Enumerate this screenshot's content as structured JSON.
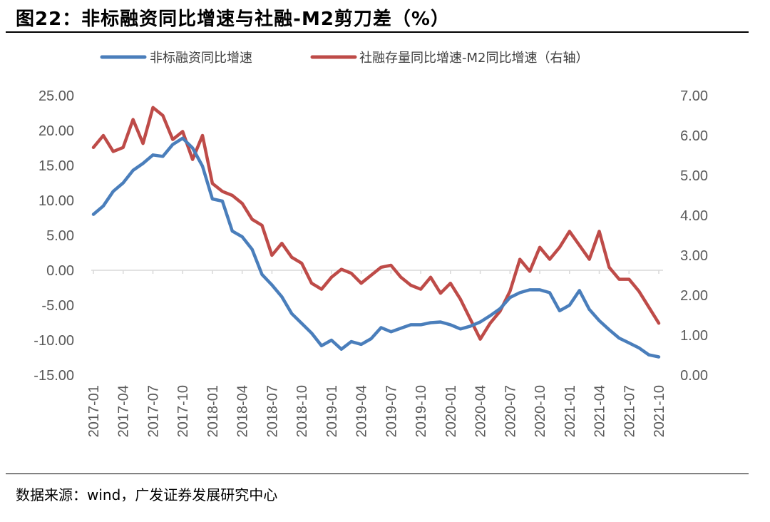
{
  "figure": {
    "title": "图22：非标融资同比增速与社融-M2剪刀差（%）",
    "source": "数据来源：wind，广发证券发展研究中心"
  },
  "colors": {
    "series1": "#4a7ebb",
    "series2": "#be4b48",
    "axis": "#d9d9d9",
    "tick": "#595959"
  },
  "chart_data": {
    "type": "line",
    "title": "非标融资同比增速与社融-M2剪刀差（%）",
    "legend_position": "top",
    "grid": false,
    "x": [
      "2017-01",
      "2017-02",
      "2017-03",
      "2017-04",
      "2017-05",
      "2017-06",
      "2017-07",
      "2017-08",
      "2017-09",
      "2017-10",
      "2017-11",
      "2017-12",
      "2018-01",
      "2018-02",
      "2018-03",
      "2018-04",
      "2018-05",
      "2018-06",
      "2018-07",
      "2018-08",
      "2018-09",
      "2018-10",
      "2018-11",
      "2018-12",
      "2019-01",
      "2019-02",
      "2019-03",
      "2019-04",
      "2019-05",
      "2019-06",
      "2019-07",
      "2019-08",
      "2019-09",
      "2019-10",
      "2019-11",
      "2019-12",
      "2020-01",
      "2020-02",
      "2020-03",
      "2020-04",
      "2020-05",
      "2020-06",
      "2020-07",
      "2020-08",
      "2020-09",
      "2020-10",
      "2020-11",
      "2020-12",
      "2021-01",
      "2021-02",
      "2021-03",
      "2021-04",
      "2021-05",
      "2021-06",
      "2021-07",
      "2021-08",
      "2021-09",
      "2021-10"
    ],
    "x_tick_labels": [
      "2017-01",
      "2017-04",
      "2017-07",
      "2017-10",
      "2018-01",
      "2018-04",
      "2018-07",
      "2018-10",
      "2019-01",
      "2019-04",
      "2019-07",
      "2019-10",
      "2020-01",
      "2020-04",
      "2020-07",
      "2020-10",
      "2021-01",
      "2021-04",
      "2021-07",
      "2021-10"
    ],
    "y_left": {
      "ylim": [
        -15,
        25
      ],
      "ticks": [
        "25.00",
        "20.00",
        "15.00",
        "10.00",
        "5.00",
        "0.00",
        "-5.00",
        "-10.00",
        "-15.00"
      ]
    },
    "y_right": {
      "ylim": [
        0,
        7
      ],
      "ticks": [
        "7.00",
        "6.00",
        "5.00",
        "4.00",
        "3.00",
        "2.00",
        "1.00",
        "0.00"
      ]
    },
    "series": [
      {
        "name": "非标融资同比增速",
        "axis": "left",
        "values": [
          8.0,
          9.2,
          11.3,
          12.5,
          14.3,
          15.3,
          16.5,
          16.3,
          18.0,
          18.9,
          17.5,
          14.9,
          10.2,
          9.9,
          5.6,
          4.8,
          3.0,
          -0.6,
          -2.1,
          -3.8,
          -6.2,
          -7.6,
          -9.0,
          -10.8,
          -10.0,
          -11.3,
          -10.2,
          -10.6,
          -9.8,
          -8.2,
          -8.8,
          -8.3,
          -7.8,
          -7.8,
          -7.5,
          -7.4,
          -7.8,
          -8.4,
          -8.0,
          -7.4,
          -6.5,
          -5.5,
          -3.9,
          -3.2,
          -2.8,
          -2.8,
          -3.2,
          -5.8,
          -5.0,
          -2.9,
          -5.6,
          -7.2,
          -8.5,
          -9.7,
          -10.4,
          -11.1,
          -12.1,
          -12.4
        ]
      },
      {
        "name": "社融存量同比增速-M2同比增速（右轴）",
        "axis": "right",
        "values": [
          5.7,
          6.0,
          5.6,
          5.7,
          6.4,
          5.8,
          6.7,
          6.5,
          5.9,
          6.1,
          5.4,
          6.0,
          4.8,
          4.6,
          4.5,
          4.3,
          3.9,
          3.75,
          3.0,
          3.3,
          2.95,
          2.8,
          2.3,
          2.15,
          2.45,
          2.65,
          2.55,
          2.3,
          2.5,
          2.7,
          2.75,
          2.45,
          2.25,
          2.15,
          2.45,
          2.05,
          2.3,
          1.9,
          1.4,
          0.9,
          1.3,
          1.6,
          2.1,
          2.9,
          2.6,
          3.2,
          2.9,
          3.2,
          3.6,
          3.25,
          2.9,
          3.6,
          2.7,
          2.4,
          2.4,
          2.1,
          1.7,
          1.3
        ]
      }
    ]
  }
}
